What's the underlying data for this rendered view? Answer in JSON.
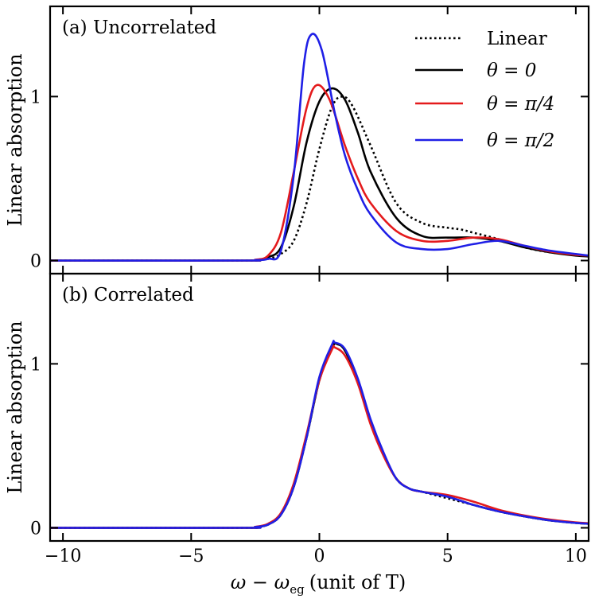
{
  "chart_data": {
    "type": "line",
    "xlabel": "ω − ω",
    "xlabel_sub": "eg",
    "xlabel_unit": "(unit of T)",
    "ylabel": "Linear absorption",
    "xlim": [
      -10.5,
      10.5
    ],
    "x_ticks": [
      -10,
      -5,
      0,
      5,
      10
    ],
    "x_tick_labels": [
      "−10",
      "−5",
      "0",
      "5",
      "10"
    ],
    "legend": [
      {
        "label": "Linear",
        "color": "#000000",
        "style": "dotted"
      },
      {
        "label": "θ = 0",
        "color": "#000000",
        "style": "solid"
      },
      {
        "label": "θ = π/4",
        "color": "#e41a1c",
        "style": "solid"
      },
      {
        "label": "θ = π/2",
        "color": "#1f1fe6",
        "style": "solid"
      }
    ],
    "panels": [
      {
        "title": "(a) Uncorrelated",
        "ylim": [
          -0.08,
          1.55
        ],
        "y_ticks": [
          0,
          1
        ],
        "y_tick_labels": [
          "0",
          "1"
        ],
        "series": [
          {
            "name": "Linear",
            "color": "#000000",
            "style": "dotted",
            "points": [
              [
                -10.5,
                0
              ],
              [
                -3,
                0
              ],
              [
                -2.5,
                0.003
              ],
              [
                -2,
                0.01
              ],
              [
                -1.5,
                0.04
              ],
              [
                -1,
                0.12
              ],
              [
                -0.5,
                0.35
              ],
              [
                0,
                0.68
              ],
              [
                0.5,
                0.94
              ],
              [
                0.9,
                1.0
              ],
              [
                1.3,
                0.94
              ],
              [
                2,
                0.7
              ],
              [
                3,
                0.35
              ],
              [
                4,
                0.23
              ],
              [
                5,
                0.2
              ],
              [
                5.5,
                0.19
              ],
              [
                6,
                0.17
              ],
              [
                7,
                0.13
              ],
              [
                8,
                0.08
              ],
              [
                9,
                0.05
              ],
              [
                10,
                0.035
              ],
              [
                10.5,
                0.03
              ]
            ]
          },
          {
            "name": "θ = 0",
            "color": "#000000",
            "style": "solid",
            "points": [
              [
                -10.5,
                0
              ],
              [
                -3,
                0
              ],
              [
                -2.5,
                0.003
              ],
              [
                -2,
                0.02
              ],
              [
                -1.5,
                0.08
              ],
              [
                -1,
                0.33
              ],
              [
                -0.5,
                0.72
              ],
              [
                0,
                0.97
              ],
              [
                0.5,
                1.05
              ],
              [
                1,
                0.98
              ],
              [
                1.5,
                0.78
              ],
              [
                2,
                0.54
              ],
              [
                3,
                0.26
              ],
              [
                4,
                0.15
              ],
              [
                5,
                0.14
              ],
              [
                6,
                0.14
              ],
              [
                7,
                0.12
              ],
              [
                8,
                0.08
              ],
              [
                9,
                0.05
              ],
              [
                10,
                0.03
              ],
              [
                10.5,
                0.025
              ]
            ]
          },
          {
            "name": "θ = π/4",
            "color": "#e41a1c",
            "style": "solid",
            "points": [
              [
                -10.5,
                0
              ],
              [
                -3,
                0
              ],
              [
                -2.5,
                0.005
              ],
              [
                -2,
                0.03
              ],
              [
                -1.5,
                0.17
              ],
              [
                -1,
                0.54
              ],
              [
                -0.5,
                0.93
              ],
              [
                -0.1,
                1.07
              ],
              [
                0.4,
                0.98
              ],
              [
                1,
                0.7
              ],
              [
                1.5,
                0.5
              ],
              [
                2,
                0.35
              ],
              [
                3,
                0.18
              ],
              [
                4,
                0.12
              ],
              [
                5,
                0.12
              ],
              [
                6,
                0.14
              ],
              [
                7,
                0.13
              ],
              [
                8,
                0.09
              ],
              [
                9,
                0.055
              ],
              [
                10,
                0.035
              ],
              [
                10.5,
                0.03
              ]
            ]
          },
          {
            "name": "θ = π/2",
            "color": "#1f1fe6",
            "style": "solid",
            "points": [
              [
                -10.5,
                0
              ],
              [
                -3,
                0
              ],
              [
                -2.5,
                0.003
              ],
              [
                -2,
                0.01
              ],
              [
                -1.5,
                0.06
              ],
              [
                -1,
                0.52
              ],
              [
                -0.6,
                1.2
              ],
              [
                -0.3,
                1.38
              ],
              [
                0.1,
                1.28
              ],
              [
                0.6,
                0.9
              ],
              [
                1,
                0.64
              ],
              [
                1.5,
                0.43
              ],
              [
                2,
                0.28
              ],
              [
                3,
                0.11
              ],
              [
                4,
                0.07
              ],
              [
                5,
                0.07
              ],
              [
                6,
                0.1
              ],
              [
                7,
                0.12
              ],
              [
                8,
                0.09
              ],
              [
                9,
                0.06
              ],
              [
                10,
                0.04
              ],
              [
                10.5,
                0.03
              ]
            ]
          }
        ]
      },
      {
        "title": "(b) Correlated",
        "ylim": [
          -0.08,
          1.55
        ],
        "y_ticks": [
          0,
          1
        ],
        "y_tick_labels": [
          "0",
          "1"
        ],
        "series": [
          {
            "name": "Linear",
            "color": "#000000",
            "style": "dotted",
            "points": [
              [
                -10.5,
                0
              ],
              [
                -3,
                0
              ],
              [
                -2.5,
                0.005
              ],
              [
                -2,
                0.02
              ],
              [
                -1.5,
                0.08
              ],
              [
                -1,
                0.25
              ],
              [
                -0.5,
                0.55
              ],
              [
                0,
                0.9
              ],
              [
                0.5,
                1.1
              ],
              [
                0.7,
                1.12
              ],
              [
                1,
                1.08
              ],
              [
                1.5,
                0.9
              ],
              [
                2,
                0.65
              ],
              [
                2.5,
                0.45
              ],
              [
                3,
                0.3
              ],
              [
                3.5,
                0.24
              ],
              [
                4,
                0.22
              ],
              [
                5,
                0.18
              ],
              [
                6,
                0.14
              ],
              [
                7,
                0.1
              ],
              [
                8,
                0.07
              ],
              [
                9,
                0.045
              ],
              [
                10,
                0.03
              ],
              [
                10.5,
                0.025
              ]
            ]
          },
          {
            "name": "θ = 0",
            "color": "#000000",
            "style": "solid",
            "points": [
              [
                -10.5,
                0
              ],
              [
                -3,
                0
              ],
              [
                -2.5,
                0.005
              ],
              [
                -2,
                0.02
              ],
              [
                -1.5,
                0.08
              ],
              [
                -1,
                0.25
              ],
              [
                -0.5,
                0.55
              ],
              [
                0,
                0.9
              ],
              [
                0.5,
                1.1
              ],
              [
                0.7,
                1.12
              ],
              [
                1,
                1.08
              ],
              [
                1.5,
                0.9
              ],
              [
                2,
                0.65
              ],
              [
                2.5,
                0.45
              ],
              [
                3,
                0.3
              ],
              [
                3.5,
                0.24
              ],
              [
                4,
                0.22
              ],
              [
                5,
                0.19
              ],
              [
                6,
                0.14
              ],
              [
                7,
                0.1
              ],
              [
                8,
                0.07
              ],
              [
                9,
                0.045
              ],
              [
                10,
                0.03
              ],
              [
                10.5,
                0.025
              ]
            ]
          },
          {
            "name": "θ = π/4",
            "color": "#e41a1c",
            "style": "solid",
            "points": [
              [
                -10.5,
                0
              ],
              [
                -3,
                0
              ],
              [
                -2.5,
                0.006
              ],
              [
                -2,
                0.025
              ],
              [
                -1.5,
                0.09
              ],
              [
                -1,
                0.27
              ],
              [
                -0.5,
                0.57
              ],
              [
                0,
                0.9
              ],
              [
                0.5,
                1.09
              ],
              [
                0.6,
                1.1
              ],
              [
                1,
                1.05
              ],
              [
                1.5,
                0.88
              ],
              [
                2,
                0.63
              ],
              [
                2.5,
                0.44
              ],
              [
                3,
                0.3
              ],
              [
                3.5,
                0.24
              ],
              [
                4,
                0.22
              ],
              [
                5,
                0.2
              ],
              [
                6,
                0.16
              ],
              [
                7,
                0.11
              ],
              [
                8,
                0.075
              ],
              [
                9,
                0.05
              ],
              [
                10,
                0.033
              ],
              [
                10.5,
                0.028
              ]
            ]
          },
          {
            "name": "θ = π/2",
            "color": "#1f1fe6",
            "style": "solid",
            "points": [
              [
                -10.5,
                0
              ],
              [
                -3,
                0
              ],
              [
                -2.5,
                0.005
              ],
              [
                -2,
                0.02
              ],
              [
                -1.5,
                0.08
              ],
              [
                -1,
                0.25
              ],
              [
                -0.5,
                0.55
              ],
              [
                0,
                0.92
              ],
              [
                0.5,
                1.12
              ],
              [
                0.6,
                1.13
              ],
              [
                1,
                1.09
              ],
              [
                1.5,
                0.91
              ],
              [
                2,
                0.66
              ],
              [
                2.5,
                0.46
              ],
              [
                3,
                0.3
              ],
              [
                3.5,
                0.24
              ],
              [
                4,
                0.22
              ],
              [
                5,
                0.19
              ],
              [
                6,
                0.14
              ],
              [
                7,
                0.1
              ],
              [
                8,
                0.07
              ],
              [
                9,
                0.045
              ],
              [
                10,
                0.03
              ],
              [
                10.5,
                0.025
              ]
            ]
          }
        ]
      }
    ]
  }
}
